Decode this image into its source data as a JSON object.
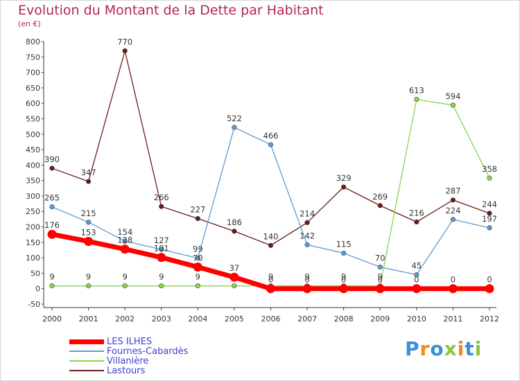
{
  "chart_data": {
    "type": "line",
    "title": "Evolution du Montant de la Dette par Habitant",
    "subtitle": "(en €)",
    "x": [
      "2000",
      "2001",
      "2002",
      "2003",
      "2004",
      "2005",
      "2006",
      "2007",
      "2008",
      "2009",
      "2010",
      "2011",
      "2012"
    ],
    "ylim": [
      -50,
      800
    ],
    "yticks": [
      -50,
      0,
      50,
      100,
      150,
      200,
      250,
      300,
      350,
      400,
      450,
      500,
      550,
      600,
      650,
      700,
      750,
      800
    ],
    "grid": false,
    "legend_position": "bottom-left",
    "series": [
      {
        "name": "LES ILHES",
        "color": "#ff0000",
        "values": [
          176,
          153,
          128,
          101,
          70,
          37,
          0,
          0,
          0,
          0,
          0,
          0,
          0
        ]
      },
      {
        "name": "Fournes-Cabardès",
        "color": "#5b9bd5",
        "values": [
          265,
          215,
          154,
          127,
          99,
          522,
          466,
          142,
          115,
          70,
          45,
          224,
          197
        ]
      },
      {
        "name": "Villanière",
        "color": "#88d44a",
        "values": [
          9,
          9,
          9,
          9,
          9,
          9,
          9,
          9,
          9,
          9,
          613,
          594,
          358
        ]
      },
      {
        "name": "Lastours",
        "color": "#6b1a1a",
        "values": [
          390,
          347,
          770,
          266,
          227,
          186,
          140,
          214,
          329,
          269,
          216,
          287,
          244
        ]
      }
    ]
  },
  "brand": {
    "text": "Proxiti"
  }
}
